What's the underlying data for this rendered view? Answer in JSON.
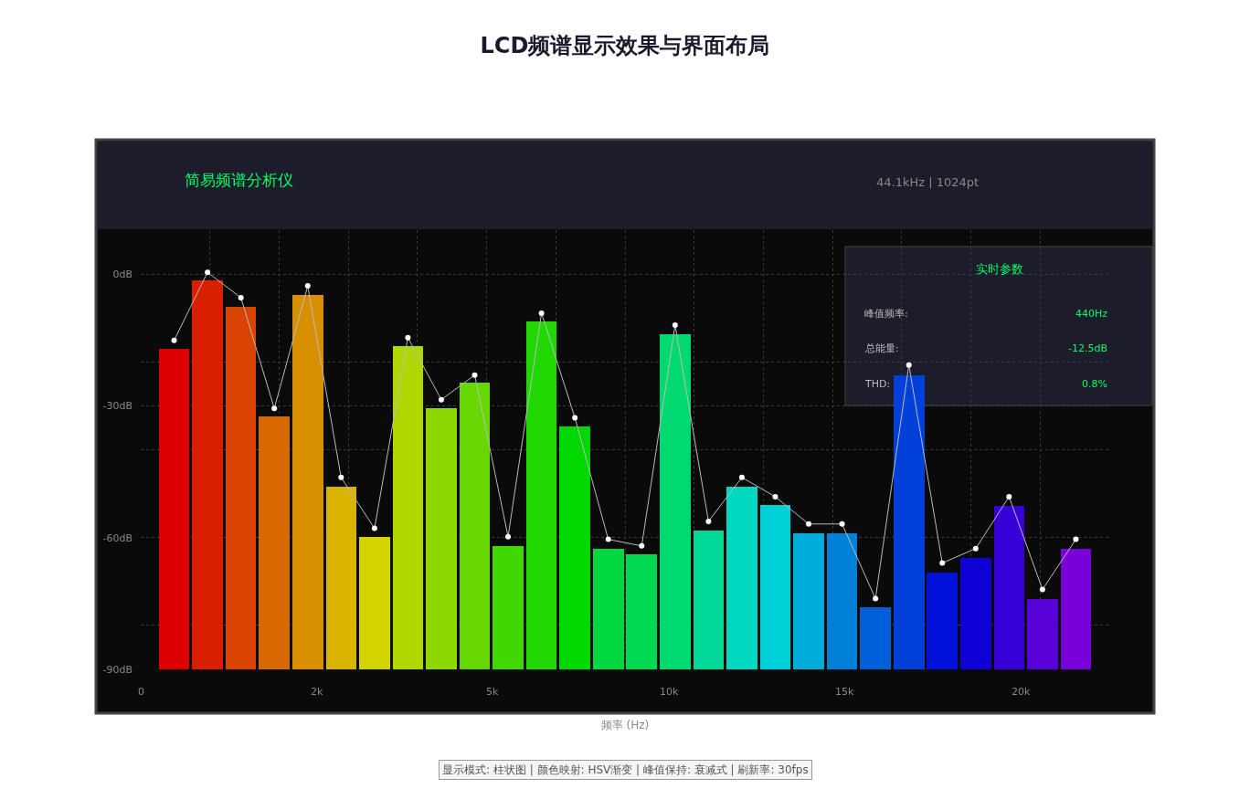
{
  "chart_data": {
    "type": "bar",
    "title": "LCD频谱显示效果与界面布局",
    "xlabel": "频率 (Hz)",
    "categories": [
      null,
      null,
      null,
      null,
      null,
      null,
      null,
      null,
      null,
      null,
      null,
      null,
      null,
      null,
      null,
      null,
      null,
      null,
      null,
      null,
      null,
      null,
      null,
      null,
      null,
      null,
      null,
      null
    ],
    "series": [
      {
        "colors": [
          "#dc0000",
          "#d82000",
          "#d84400",
          "#d86800",
          "#d89000",
          "#d8b400",
          "#d4d400",
          "#b0d800",
          "#8cd800",
          "#66d800",
          "#40d800",
          "#20d800",
          "#00d800",
          "#00d840",
          "#00d850",
          "#00d870",
          "#00d898",
          "#00d8c0",
          "#00d0d8",
          "#00acd8",
          "#0080d8",
          "#0060d8",
          "#0040d8",
          "#0010d8",
          "#1000d8",
          "#3800d8",
          "#5800d8",
          "#7800d8"
        ],
        "base": [
          -90,
          -90,
          -90,
          -90,
          -90,
          -90,
          -90,
          -90,
          -90,
          -90,
          -90,
          -90,
          -90,
          -90,
          -90,
          -90,
          -90,
          -90,
          -90,
          -90,
          -90,
          -90,
          -90,
          -90,
          -90,
          -90,
          -90,
          -90
        ],
        "values": [
          73.0,
          88.6,
          82.6,
          57.5,
          85.2,
          41.6,
          30.2,
          73.7,
          59.4,
          65.2,
          28.1,
          79.2,
          55.4,
          27.5,
          26.3,
          76.3,
          31.7,
          41.6,
          37.4,
          31.0,
          31.0,
          14.1,
          67.0,
          22.1,
          25.4,
          37.2,
          16.1,
          27.5
        ]
      },
      {
        "type": "line",
        "color": "#bbbbbb",
        "marker": "circle",
        "values": [
          -15.1,
          0.4,
          -5.4,
          -30.6,
          -2.7,
          -46.3,
          -57.9,
          -14.5,
          -28.6,
          -23.0,
          -59.8,
          -8.9,
          -32.7,
          -60.4,
          -61.9,
          -11.6,
          -56.3,
          -46.3,
          -50.7,
          -56.9,
          -56.9,
          -73.9,
          -20.7,
          -65.8,
          -62.5,
          -50.7,
          -71.8,
          -60.4
        ]
      }
    ],
    "ylim": [
      -90,
      10
    ],
    "yticks": [
      {
        "value": 0,
        "label": "0dB"
      },
      {
        "value": -30,
        "label": "-30dB"
      },
      {
        "value": -60,
        "label": "-60dB"
      },
      {
        "value": -90,
        "label": "-90dB"
      },
      {
        "value": -20,
        "label": null
      },
      {
        "value": -40,
        "label": null
      },
      {
        "value": -80,
        "label": null
      }
    ],
    "grid": true,
    "legend": false,
    "annotations": [
      "简易频谱分析仪",
      "44.1kHz | 1024pt",
      "实时参数",
      "峰值频率:",
      "440Hz",
      "总能量:",
      "-12.5dB",
      "THD:",
      "0.8%",
      "显示模式: 柱状图 | 颜色映射: HSV渐变 | 峰值保持: 衰减式 | 刷新率: 30fps",
      "0",
      "2k",
      "5k",
      "10k",
      "15k",
      "20k"
    ]
  }
}
